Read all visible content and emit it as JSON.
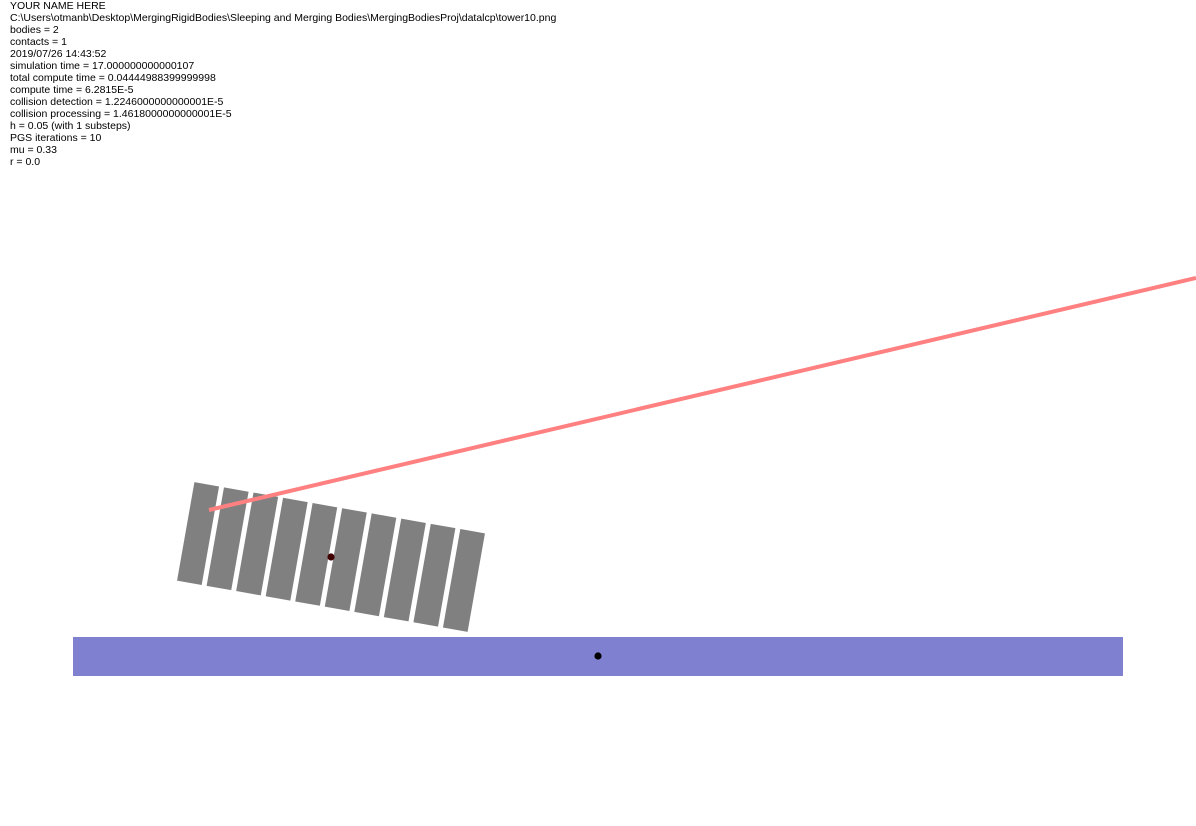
{
  "hud": {
    "lines": [
      "YOUR NAME HERE",
      "C:\\Users\\otmanb\\Desktop\\MergingRigidBodies\\Sleeping and Merging Bodies\\MergingBodiesProj\\datalcp\\tower10.png",
      "bodies = 2",
      "contacts = 1",
      "2019/07/26 14:43:52",
      "simulation time = 17.000000000000107",
      "total compute time = 0.04444988399999998",
      "compute time = 6.2815E-5",
      "collision detection = 1.2246000000000001E-5",
      "collision processing = 1.4618000000000001E-5",
      "h = 0.05 (with 1 substeps)",
      "PGS iterations = 10",
      "mu = 0.33",
      "r = 0.0"
    ]
  },
  "colors": {
    "block_fill": "#808080",
    "ground_fill": "#8080d0",
    "spring_line": "#ff8080",
    "body_com_marker": "#400000",
    "ground_com_marker": "#000000"
  },
  "scene": {
    "tower_block_count": 10
  }
}
